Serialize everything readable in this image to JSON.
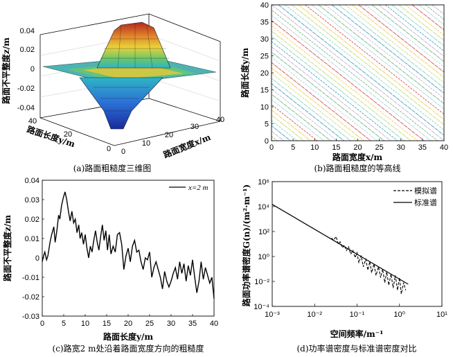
{
  "chart_data": [
    {
      "id": "a",
      "type": "surface3d",
      "caption": "(a)路面粗糙度三维图",
      "xlabel": "路面宽度x/m",
      "ylabel": "路面长度y/m",
      "zlabel": "路面不平整度z/m",
      "x_ticks": [
        "0",
        "10",
        "20",
        "30",
        "40"
      ],
      "y_ticks": [
        "0",
        "20",
        "40"
      ],
      "z_ticks": [
        "0.04",
        "0.02",
        "0",
        "-0.02",
        "-0.04"
      ],
      "xlim": [
        0,
        40
      ],
      "ylim": [
        0,
        40
      ],
      "zlim": [
        -0.04,
        0.04
      ],
      "peak": {
        "x": 20,
        "y": 20,
        "z": 0.04
      },
      "trough": {
        "x": 20,
        "y": 20,
        "z": -0.045
      },
      "colormap": [
        "#1a2a9a",
        "#2b6fd6",
        "#2fb4c4",
        "#6bc76b",
        "#e8d23a",
        "#e0842a",
        "#b3261e"
      ]
    },
    {
      "id": "b",
      "type": "contour",
      "caption": "(b)路面粗糙度的等高线",
      "xlabel": "路面宽度x/m",
      "ylabel": "路面长度y/m",
      "x_ticks": [
        "0",
        "5",
        "10",
        "15",
        "20",
        "25",
        "30",
        "35",
        "40"
      ],
      "y_ticks": [
        "0",
        "5",
        "10",
        "15",
        "20",
        "25",
        "30",
        "35",
        "40"
      ],
      "xlim": [
        0,
        40
      ],
      "ylim": [
        0,
        40
      ],
      "line_orientation": "diagonal, constant along x + y",
      "line_colors": [
        "#2a9aa8",
        "#7ec8c0",
        "#b8d860",
        "#e8c83a",
        "#d23a3a",
        "#9ad0e0",
        "#5db06a",
        "#c0a0d8"
      ]
    },
    {
      "id": "c",
      "type": "line",
      "caption": "(c)路宽2 m处沿着路面宽度方向的粗糙度",
      "xlabel": "路面长度y/m",
      "ylabel": "路面不平整度z/m",
      "xlim": [
        0,
        40
      ],
      "ylim": [
        -0.03,
        0.04
      ],
      "x_ticks": [
        "0",
        "5",
        "10",
        "15",
        "20",
        "25",
        "30",
        "35",
        "40"
      ],
      "y_ticks": [
        "0.04",
        "0.03",
        "0.02",
        "0.01",
        "0",
        "-0.01",
        "-0.02",
        "-0.03"
      ],
      "legend": "x=2 m",
      "legend_position": "top-right",
      "series": [
        {
          "name": "x=2 m",
          "x": [
            0,
            0.3,
            0.6,
            1.0,
            1.3,
            1.8,
            2.2,
            2.7,
            3.0,
            3.4,
            3.8,
            4.1,
            4.5,
            4.9,
            5.3,
            5.7,
            6.1,
            6.5,
            6.9,
            7.3,
            7.7,
            8.1,
            8.5,
            8.8,
            9.2,
            9.6,
            10.0,
            10.4,
            10.8,
            11.2,
            11.6,
            12.0,
            12.4,
            12.8,
            13.2,
            13.6,
            14.0,
            14.4,
            14.8,
            15.2,
            15.6,
            16.0,
            16.5,
            17.0,
            17.5,
            18.0,
            18.5,
            19.0,
            19.5,
            20.0,
            20.5,
            21.0,
            21.5,
            22.0,
            22.5,
            23.0,
            23.5,
            24.0,
            24.5,
            25.0,
            25.5,
            26.0,
            26.5,
            27.0,
            27.5,
            28.0,
            28.5,
            29.0,
            29.5,
            30.0,
            30.5,
            31.0,
            31.5,
            32.0,
            32.5,
            33.0,
            33.5,
            34.0,
            34.5,
            35.0,
            35.5,
            36.0,
            36.5,
            37.0,
            37.5,
            38.0,
            38.5,
            39.0,
            39.5,
            40.0
          ],
          "y": [
            -0.002,
            0.001,
            0.003,
            -0.001,
            0.001,
            0.008,
            0.012,
            0.016,
            0.008,
            0.014,
            0.022,
            0.02,
            0.027,
            0.031,
            0.034,
            0.03,
            0.024,
            0.019,
            0.024,
            0.018,
            0.02,
            0.013,
            0.017,
            0.01,
            0.013,
            0.007,
            0.012,
            0.005,
            0.0,
            0.006,
            0.003,
            0.009,
            0.014,
            0.008,
            0.004,
            0.011,
            0.017,
            0.009,
            0.014,
            0.004,
            0.012,
            0.002,
            0.006,
            0.003,
            0.012,
            0.013,
            0.007,
            -0.006,
            0.001,
            0.005,
            -0.002,
            0.006,
            0.009,
            0.003,
            0.004,
            -0.002,
            -0.006,
            0.0,
            -0.001,
            0.003,
            -0.01,
            -0.005,
            -0.002,
            -0.006,
            -0.01,
            -0.016,
            -0.007,
            -0.012,
            -0.015,
            -0.012,
            -0.008,
            -0.005,
            -0.011,
            -0.002,
            -0.008,
            -0.003,
            -0.012,
            -0.004,
            -0.009,
            -0.001,
            -0.01,
            -0.018,
            -0.012,
            -0.002,
            -0.011,
            -0.005,
            -0.009,
            -0.013,
            -0.01,
            -0.021
          ]
        }
      ]
    },
    {
      "id": "d",
      "type": "line",
      "caption": "(d)功率谱密度与标准谱密度对比",
      "xlabel": "空间频率/m⁻¹",
      "ylabel": "路面功率谱密度G(n)/(m²·m⁻¹)",
      "xscale": "log",
      "yscale": "log",
      "xlim": [
        0.001,
        10
      ],
      "ylim": [
        0.0001,
        1000000
      ],
      "x_ticks": [
        "10⁻³",
        "10⁻²",
        "10⁻¹",
        "10⁰",
        "10¹"
      ],
      "y_ticks": [
        "10⁶",
        "10⁴",
        "10²",
        "10⁰",
        "10⁻²",
        "10⁻⁴"
      ],
      "legend_position": "top-right",
      "series": [
        {
          "name": "模拟谱",
          "style": "dashed",
          "x": [
            0.025,
            0.028,
            0.032,
            0.036,
            0.04,
            0.045,
            0.05,
            0.056,
            0.063,
            0.071,
            0.08,
            0.09,
            0.1,
            0.11,
            0.125,
            0.14,
            0.16,
            0.18,
            0.2,
            0.22,
            0.25,
            0.28,
            0.32,
            0.36,
            0.4,
            0.45,
            0.5,
            0.56,
            0.63,
            0.71,
            0.8,
            0.9,
            1.0,
            1.1,
            1.25,
            1.4
          ],
          "y": [
            30,
            20,
            40,
            10,
            15,
            5,
            8,
            3,
            6,
            1.5,
            3,
            0.8,
            2,
            0.3,
            1.2,
            0.15,
            0.6,
            0.08,
            0.4,
            0.05,
            0.25,
            0.03,
            0.15,
            0.02,
            0.1,
            0.008,
            0.06,
            0.005,
            0.04,
            0.003,
            0.03,
            0.002,
            0.02,
            0.001,
            0.008,
            0.002
          ]
        },
        {
          "name": "标准谱",
          "style": "solid",
          "x": [
            0.001,
            1.6
          ],
          "y": [
            15000,
            0.006
          ]
        }
      ]
    }
  ]
}
